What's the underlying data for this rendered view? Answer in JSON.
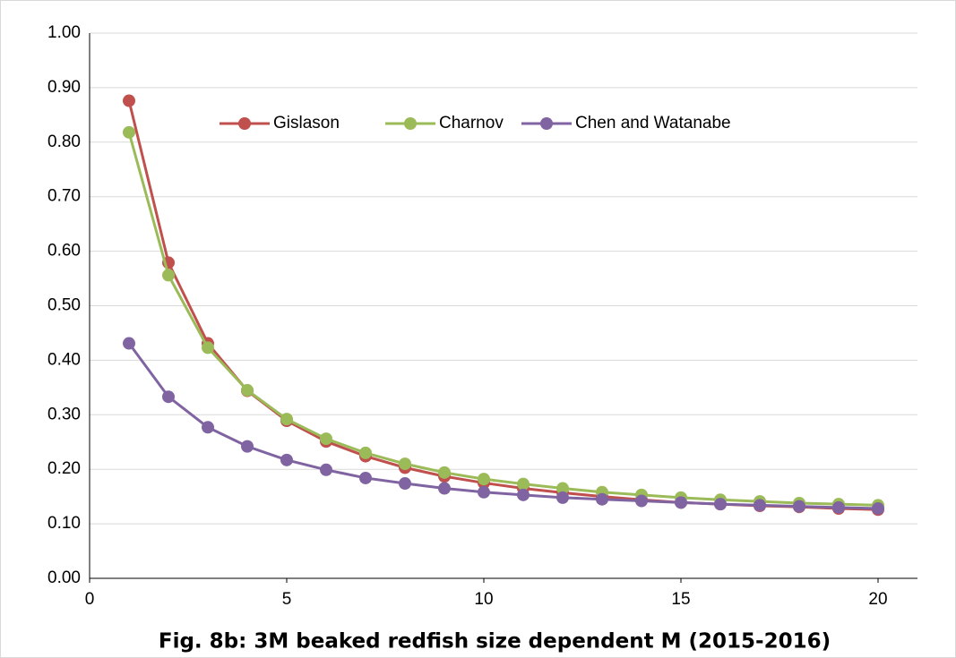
{
  "chart_data": {
    "type": "line",
    "title": "Fig. 8b: 3M beaked redfish size dependent M (2015-2016)",
    "x": [
      1,
      2,
      3,
      4,
      5,
      6,
      7,
      8,
      9,
      10,
      11,
      12,
      13,
      14,
      15,
      16,
      17,
      18,
      19,
      20
    ],
    "series": [
      {
        "name": "Gislason",
        "color": "#c0504d",
        "values": [
          0.876,
          0.579,
          0.431,
          0.344,
          0.289,
          0.251,
          0.224,
          0.203,
          0.187,
          0.175,
          0.165,
          0.157,
          0.15,
          0.144,
          0.139,
          0.136,
          0.133,
          0.131,
          0.128,
          0.126
        ]
      },
      {
        "name": "Charnov",
        "color": "#9bbb59",
        "values": [
          0.818,
          0.556,
          0.423,
          0.345,
          0.292,
          0.256,
          0.23,
          0.21,
          0.194,
          0.182,
          0.173,
          0.165,
          0.158,
          0.153,
          0.148,
          0.144,
          0.141,
          0.138,
          0.136,
          0.134
        ]
      },
      {
        "name": "Chen and Watanabe",
        "color": "#8064a2",
        "values": [
          0.431,
          0.333,
          0.277,
          0.242,
          0.217,
          0.199,
          0.184,
          0.174,
          0.165,
          0.158,
          0.153,
          0.148,
          0.145,
          0.142,
          0.139,
          0.136,
          0.134,
          0.132,
          0.13,
          0.128
        ]
      }
    ],
    "xlim": [
      0,
      21
    ],
    "xticks": [
      0,
      5,
      10,
      15,
      20
    ],
    "ylim": [
      0,
      1
    ],
    "yticks": [
      {
        "value": 0,
        "label": "0.00"
      },
      {
        "value": 0.1,
        "label": "0.10"
      },
      {
        "value": 0.2,
        "label": "0.20"
      },
      {
        "value": 0.3,
        "label": "0.30"
      },
      {
        "value": 0.4,
        "label": "0.40"
      },
      {
        "value": 0.5,
        "label": "0.50"
      },
      {
        "value": 0.6,
        "label": "0.60"
      },
      {
        "value": 0.7,
        "label": "0.70"
      },
      {
        "value": 0.8,
        "label": "0.80"
      },
      {
        "value": 0.9,
        "label": "0.90"
      },
      {
        "value": 1,
        "label": "1.00"
      }
    ],
    "grid": true,
    "legend": "top"
  }
}
